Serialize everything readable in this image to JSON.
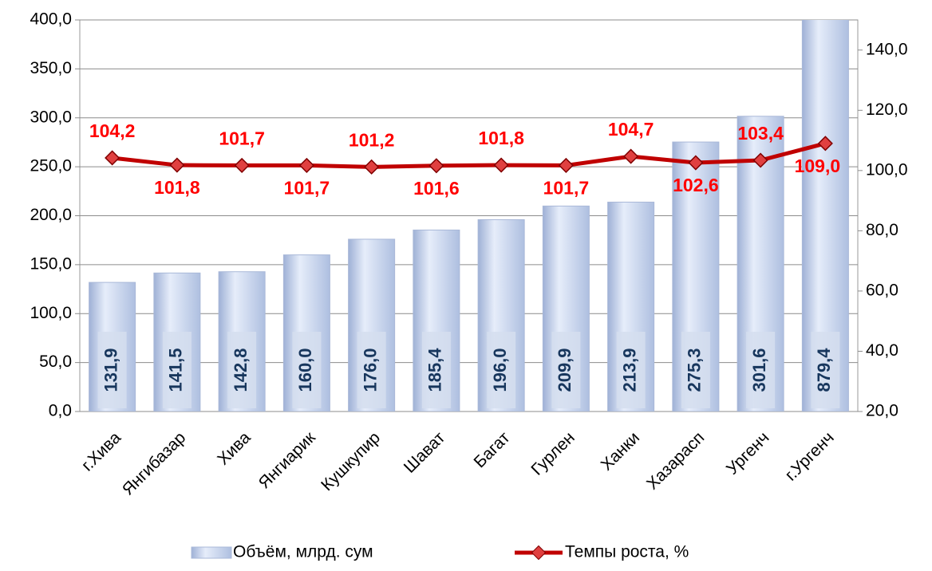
{
  "chart_data": {
    "type": "bar-line",
    "categories": [
      "г.Хива",
      "Янгибазар",
      "Хива",
      "Янгиарик",
      "Кушкупир",
      "Шават",
      "Багат",
      "Гурлен",
      "Ханки",
      "Хазарасп",
      "Ургенч",
      "г.Ургенч"
    ],
    "series": [
      {
        "name": "Объём, млрд. сум",
        "color": "#c5d3ee",
        "type": "bar",
        "values": [
          131.9,
          141.5,
          142.8,
          160.0,
          176.0,
          185.4,
          196.0,
          209.9,
          213.9,
          275.3,
          301.6,
          879.4
        ],
        "value_labels": [
          "131,9",
          "141,5",
          "142,8",
          "160,0",
          "176,0",
          "185,4",
          "196,0",
          "209,9",
          "213,9",
          "275,3",
          "301,6",
          "879,4"
        ]
      },
      {
        "name": "Темпы роста, %",
        "color": "#c00000",
        "type": "line",
        "axis": "y2",
        "values": [
          104.2,
          101.8,
          101.7,
          101.7,
          101.2,
          101.6,
          101.8,
          101.7,
          104.7,
          102.6,
          103.4,
          109.0
        ],
        "value_labels": [
          "104,2",
          "101,8",
          "101,7",
          "101,7",
          "101,2",
          "101,6",
          "101,8",
          "101,7",
          "104,7",
          "102,6",
          "103,4",
          "109,0"
        ]
      }
    ],
    "ylim": [
      0,
      400
    ],
    "yticks": [
      {
        "value": 0,
        "label": "0,0"
      },
      {
        "value": 50,
        "label": "50,0"
      },
      {
        "value": 100,
        "label": "100,0"
      },
      {
        "value": 150,
        "label": "150,0"
      },
      {
        "value": 200,
        "label": "200,0"
      },
      {
        "value": 250,
        "label": "250,0"
      },
      {
        "value": 300,
        "label": "300,0"
      },
      {
        "value": 350,
        "label": "350,0"
      },
      {
        "value": 400,
        "label": "400,0"
      }
    ],
    "y2lim": [
      20,
      150
    ],
    "y2ticks": [
      {
        "value": 20,
        "label": "20,0"
      },
      {
        "value": 40,
        "label": "40,0"
      },
      {
        "value": 60,
        "label": "60,0"
      },
      {
        "value": 80,
        "label": "80,0"
      },
      {
        "value": 100,
        "label": "100,0"
      },
      {
        "value": 120,
        "label": "120,0"
      },
      {
        "value": 140,
        "label": "140,0"
      }
    ],
    "grid": true,
    "legend": "bottom"
  }
}
